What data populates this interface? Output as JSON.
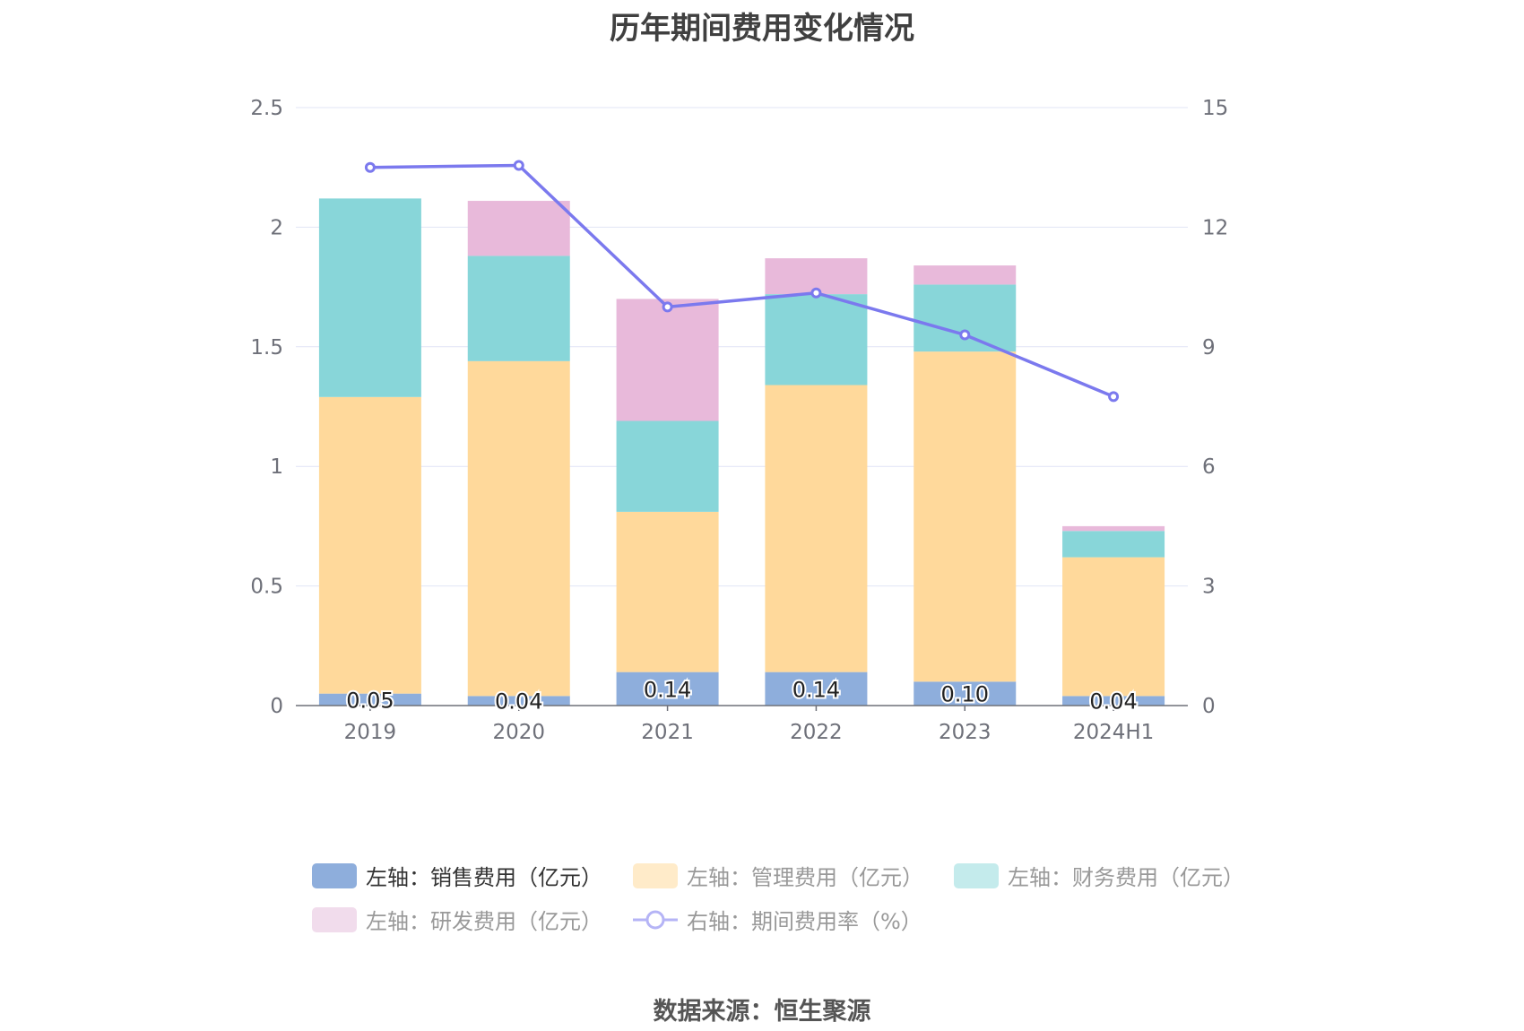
{
  "chart_data": {
    "type": "bar",
    "title": "历年期间费用变化情况",
    "categories": [
      "2019",
      "2020",
      "2021",
      "2022",
      "2023",
      "2024H1"
    ],
    "stacked": true,
    "y_left": {
      "ylim": [
        0,
        2.5
      ],
      "ticks": [
        "0",
        "0.5",
        "1",
        "1.5",
        "2",
        "2.5"
      ]
    },
    "y_right": {
      "ylim": [
        0,
        15
      ],
      "ticks": [
        "0",
        "3",
        "6",
        "9",
        "12",
        "15"
      ]
    },
    "grid": true,
    "legend_position": "bottom",
    "series": [
      {
        "name": "左轴：销售费用（亿元）",
        "axis": "left",
        "type": "bar",
        "color": "#8eaedc",
        "values": [
          0.05,
          0.04,
          0.14,
          0.14,
          0.1,
          0.04
        ],
        "labels": [
          "0.05",
          "0.04",
          "0.14",
          "0.14",
          "0.10",
          "0.04"
        ]
      },
      {
        "name": "左轴：管理费用（亿元）",
        "axis": "left",
        "type": "bar",
        "color": "#ffd99b",
        "values": [
          1.24,
          1.4,
          0.67,
          1.2,
          1.38,
          0.58
        ]
      },
      {
        "name": "左轴：财务费用（亿元）",
        "axis": "left",
        "type": "bar",
        "color": "#88d6d9",
        "values": [
          0.83,
          0.44,
          0.38,
          0.38,
          0.28,
          0.11
        ]
      },
      {
        "name": "左轴：研发费用（亿元）",
        "axis": "left",
        "type": "bar",
        "color": "#e8b9da",
        "values": [
          0.0,
          0.23,
          0.51,
          0.15,
          0.08,
          0.02
        ]
      },
      {
        "name": "右轴：期间费用率（%）",
        "axis": "right",
        "type": "line",
        "color": "#7b79ee",
        "values": [
          13.5,
          13.55,
          10.0,
          10.35,
          9.3,
          7.75
        ]
      }
    ]
  },
  "legend": {
    "items": [
      {
        "label": "左轴：销售费用（亿元）",
        "color": "#8eaedc",
        "style": "box",
        "state": "active"
      },
      {
        "label": "左轴：管理费用（亿元）",
        "color": "#ffebc9",
        "style": "box",
        "state": "dim"
      },
      {
        "label": "左轴：财务费用（亿元）",
        "color": "#c4ebec",
        "style": "box",
        "state": "dim"
      },
      {
        "label": "左轴：研发费用（亿元）",
        "color": "#f1dcec",
        "style": "box",
        "state": "dim"
      },
      {
        "label": "右轴：期间费用率（%）",
        "color": "#b5b4f6",
        "style": "line",
        "state": "dim"
      }
    ]
  },
  "source": "数据来源：恒生聚源"
}
